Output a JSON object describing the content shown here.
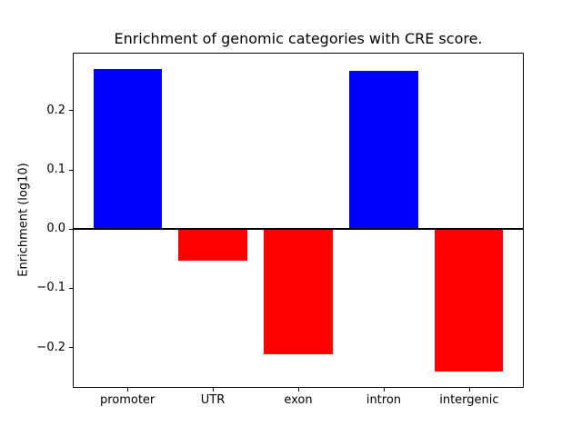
{
  "window": {
    "background_color": "#ffffff"
  },
  "chart_data": {
    "type": "bar",
    "title": "Enrichment of genomic categories with CRE score.",
    "xlabel": "",
    "ylabel": "Enrichment (log10)",
    "categories": [
      "promoter",
      "UTR",
      "exon",
      "intron",
      "intergenic"
    ],
    "values": [
      0.271,
      -0.054,
      -0.211,
      0.268,
      -0.24
    ],
    "bar_colors": [
      "#0000ff",
      "#ff0000",
      "#ff0000",
      "#0000ff",
      "#ff0000"
    ],
    "positive_color": "#0000ff",
    "negative_color": "#ff0000",
    "ylim": [
      -0.268,
      0.298
    ],
    "yticks": [
      0.2,
      0.1,
      0.0,
      -0.1,
      -0.2
    ],
    "ytick_labels": [
      "0.2",
      "0.1",
      "0.0",
      "−0.1",
      "−0.2"
    ],
    "zero_line": true,
    "grid": false,
    "legend": null,
    "spine_color": "#000000",
    "bar_width_fraction": 0.8
  }
}
